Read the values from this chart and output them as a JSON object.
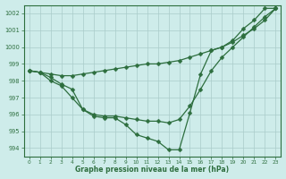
{
  "background_color": "#ceecea",
  "grid_color": "#aaccca",
  "line_color": "#2d6e3e",
  "xlabel": "Graphe pression niveau de la mer (hPa)",
  "xlim": [
    -0.5,
    23.5
  ],
  "ylim": [
    993.5,
    1002.5
  ],
  "yticks": [
    994,
    995,
    996,
    997,
    998,
    999,
    1000,
    1001,
    1002
  ],
  "xticks": [
    0,
    1,
    2,
    3,
    4,
    5,
    6,
    7,
    8,
    9,
    10,
    11,
    12,
    13,
    14,
    15,
    16,
    17,
    18,
    19,
    20,
    21,
    22,
    23
  ],
  "line1_x": [
    0,
    1,
    2,
    3,
    4,
    5,
    6,
    7,
    8,
    9,
    10,
    11,
    12,
    13,
    14,
    15,
    16,
    17,
    18,
    19,
    20,
    21,
    22,
    23
  ],
  "line1_y": [
    998.6,
    998.5,
    998.2,
    997.8,
    997.5,
    996.3,
    995.9,
    995.8,
    995.8,
    995.4,
    994.8,
    994.6,
    994.4,
    993.9,
    993.9,
    996.1,
    998.4,
    999.8,
    1000.0,
    1000.4,
    1001.1,
    1001.6,
    1002.3,
    1002.3
  ],
  "line2_x": [
    0,
    1,
    2,
    3,
    4,
    5,
    6,
    7,
    8,
    9,
    10,
    11,
    12,
    13,
    14,
    15,
    16,
    17,
    18,
    19,
    20,
    21,
    22,
    23
  ],
  "line2_y": [
    998.6,
    998.5,
    998.4,
    998.3,
    998.3,
    998.4,
    998.5,
    998.6,
    998.7,
    998.8,
    998.9,
    999.0,
    999.0,
    999.1,
    999.2,
    999.4,
    999.6,
    999.8,
    1000.0,
    1000.3,
    1000.7,
    1001.1,
    1001.6,
    1002.3
  ],
  "line3_x": [
    0,
    1,
    2,
    3,
    4,
    5,
    6,
    7,
    8,
    9,
    10,
    11,
    12,
    13,
    14,
    15,
    16,
    17,
    18,
    19,
    20,
    21,
    22,
    23
  ],
  "line3_y": [
    998.6,
    998.5,
    998.0,
    997.7,
    997.0,
    996.3,
    996.0,
    995.9,
    995.9,
    995.8,
    995.7,
    995.6,
    995.6,
    995.5,
    995.7,
    996.5,
    997.5,
    998.6,
    999.4,
    1000.0,
    1000.6,
    1001.2,
    1001.8,
    1002.3
  ],
  "lw": 0.9,
  "ms": 2.5
}
